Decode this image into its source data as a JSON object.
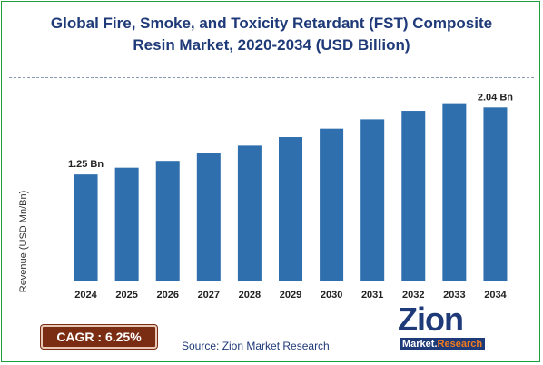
{
  "title_line1": "Global Fire, Smoke, and Toxicity Retardant (FST) Composite",
  "title_line2": "Resin Market, 2020-2034 (USD Billion)",
  "cagr": "CAGR :  6.25%",
  "source": "Source: Zion Market Research",
  "logo": {
    "brand": "Zion",
    "sub_a": "Market.",
    "sub_b": "Research"
  },
  "colors": {
    "bar": "#2f6fae",
    "title": "#1f3a78",
    "border": "#1f9d3a",
    "cagr_bg": "#7a2d12"
  },
  "chart_data": {
    "type": "bar",
    "title": "Global Fire, Smoke, and Toxicity Retardant (FST) Composite Resin Market, 2020-2034 (USD Billion)",
    "ylabel": "Revenue (USD Mn/Bn)",
    "xlabel": "",
    "categories": [
      "2024",
      "2025",
      "2026",
      "2027",
      "2028",
      "2029",
      "2030",
      "2031",
      "2032",
      "2033",
      "2034"
    ],
    "values": [
      1.25,
      1.33,
      1.41,
      1.5,
      1.59,
      1.69,
      1.79,
      1.9,
      2.0,
      2.09,
      2.04
    ],
    "data_labels": [
      {
        "index": 0,
        "text": "1.25 Bn"
      },
      {
        "index": 10,
        "text": "2.04 Bn"
      }
    ],
    "ylim": [
      0,
      2.3
    ],
    "grid": false,
    "legend": "none"
  }
}
